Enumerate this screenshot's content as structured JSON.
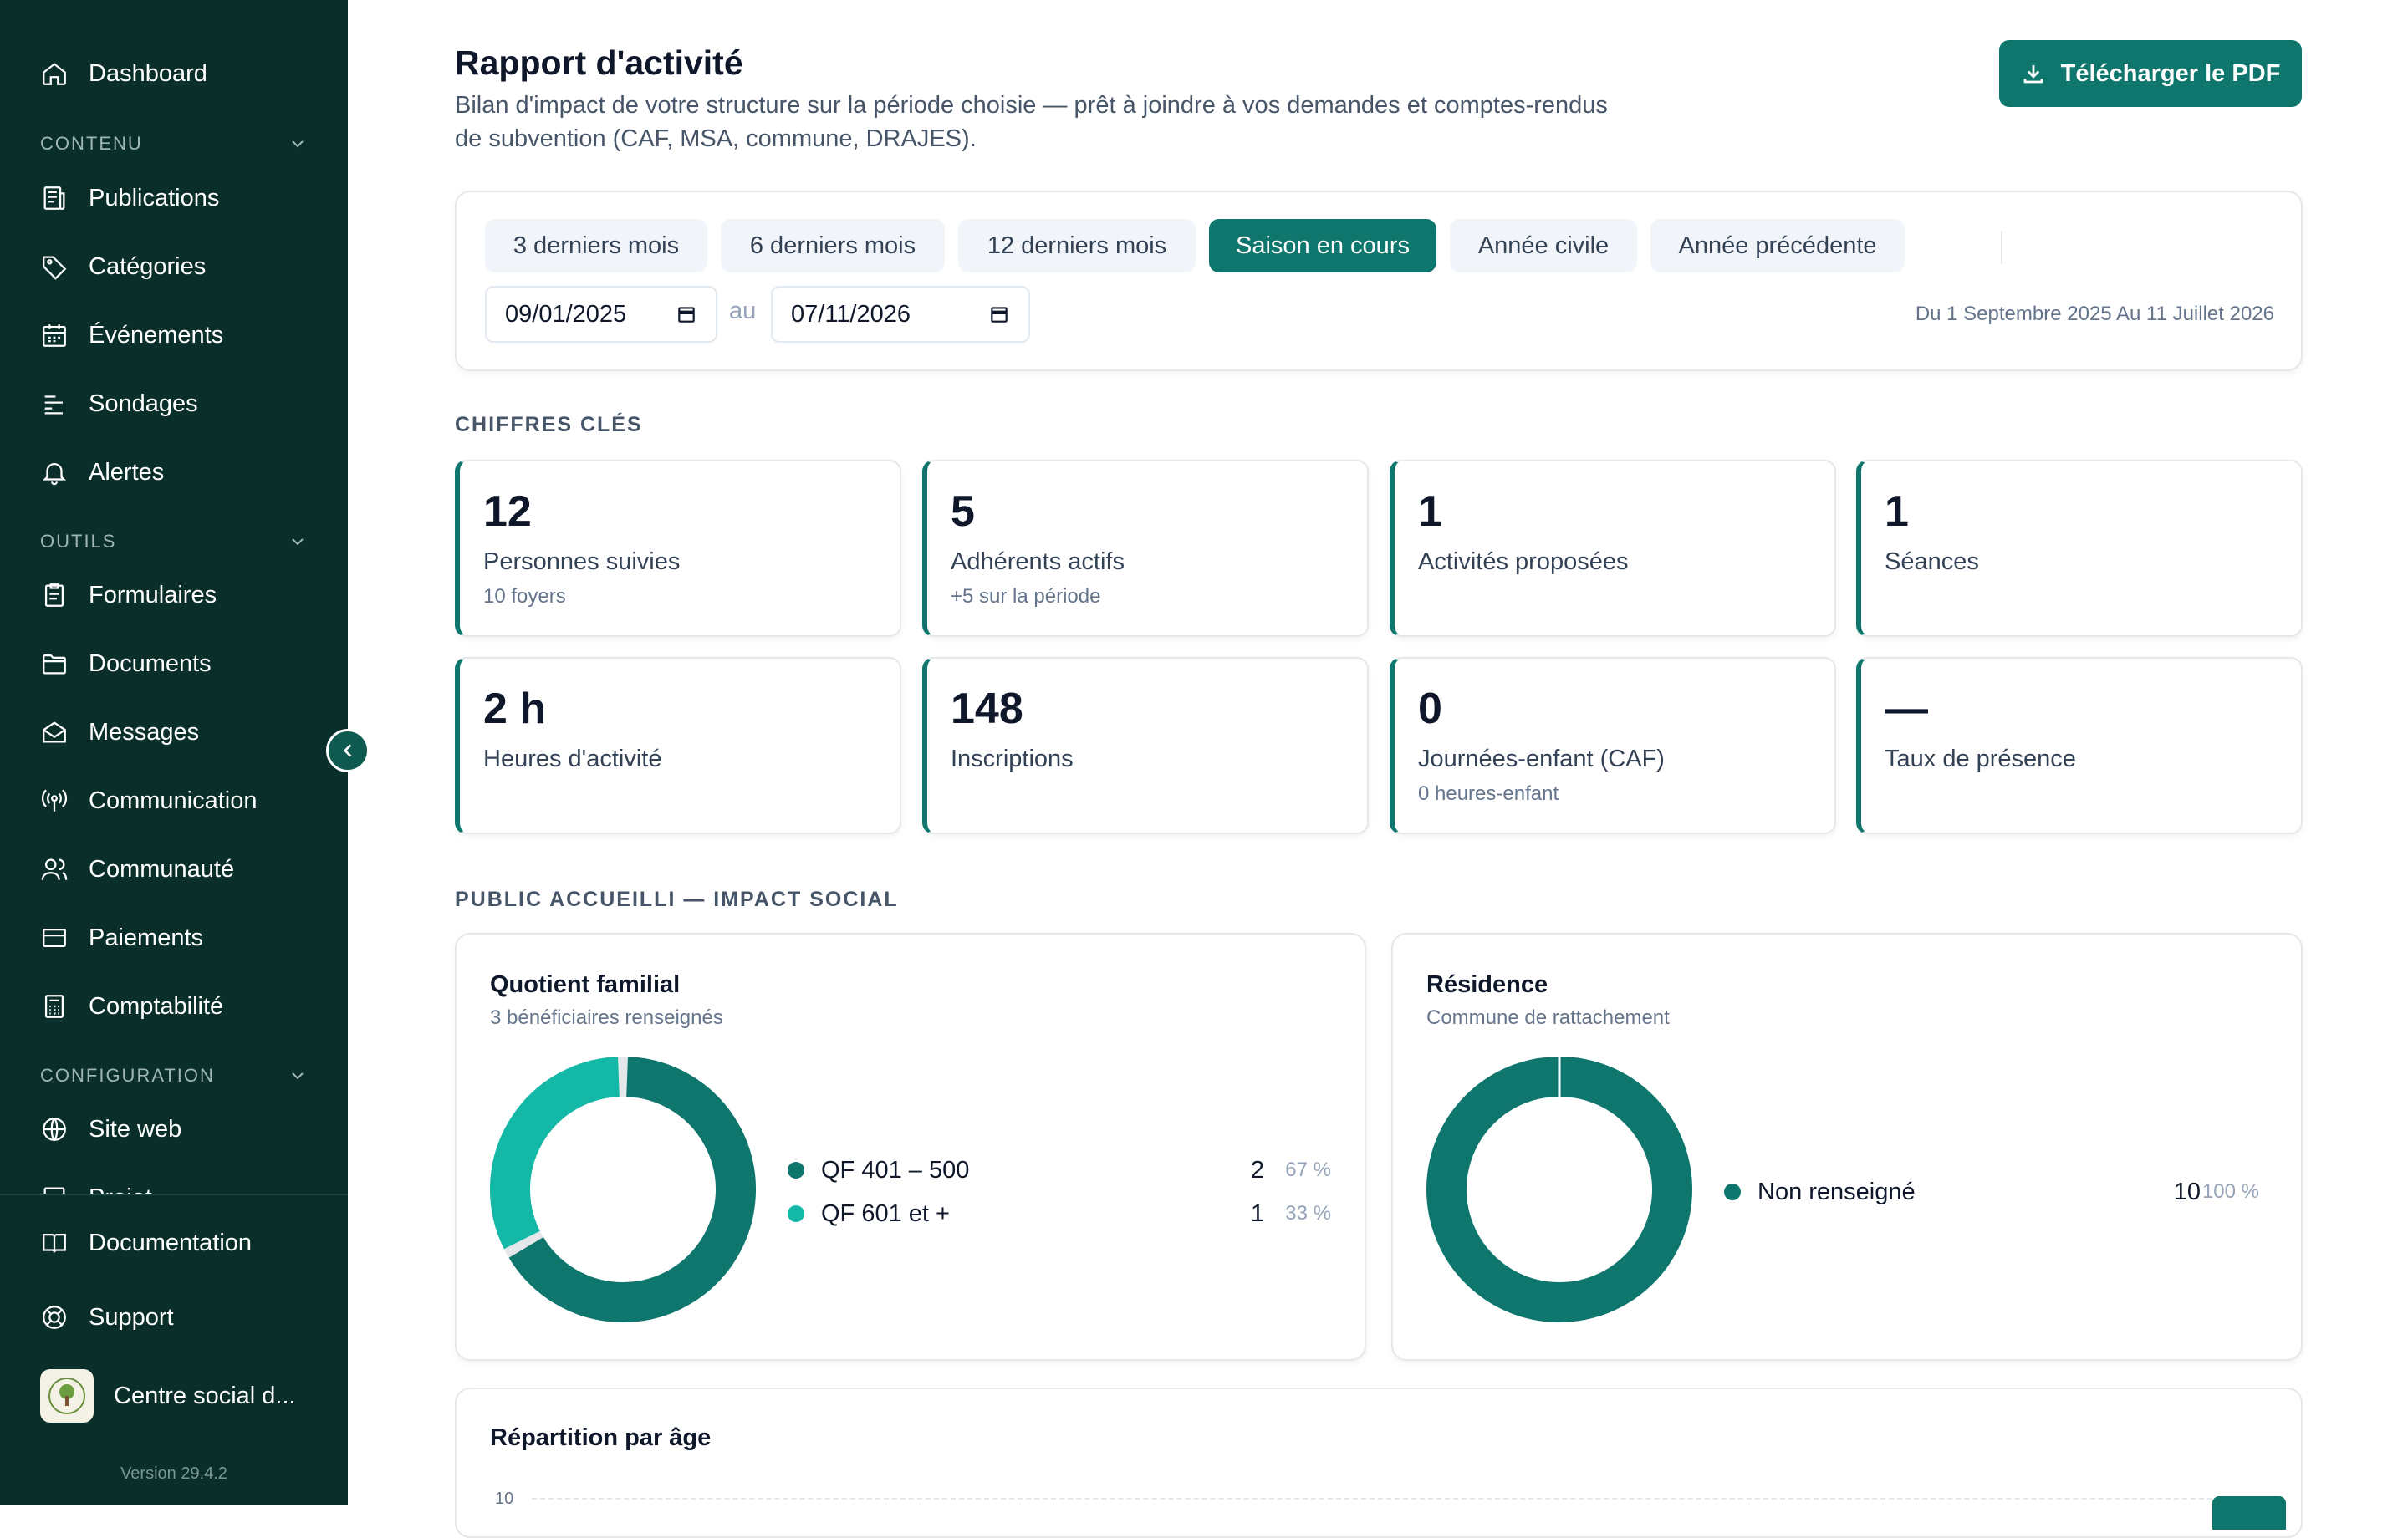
{
  "sidebar": {
    "dashboard": "Dashboard",
    "sections": {
      "contenu": "CONTENU",
      "outils": "OUTILS",
      "configuration": "CONFIGURATION"
    },
    "items": {
      "publications": "Publications",
      "categories": "Catégories",
      "evenements": "Événements",
      "sondages": "Sondages",
      "alertes": "Alertes",
      "formulaires": "Formulaires",
      "documents": "Documents",
      "messages": "Messages",
      "communication": "Communication",
      "communaute": "Communauté",
      "paiements": "Paiements",
      "comptabilite": "Comptabilité",
      "site_web": "Site web",
      "projet": "Projet"
    },
    "bottom": {
      "documentation": "Documentation",
      "support": "Support",
      "org_name": "Centre social d...",
      "version": "Version 29.4.2"
    }
  },
  "header": {
    "title": "Rapport d'activité",
    "subtitle": "Bilan d'impact de votre structure sur la période choisie — prêt à joindre à vos demandes et comptes-rendus de subvention (CAF, MSA, commune, DRAJES).",
    "pdf_button": "Télécharger le PDF"
  },
  "filters": {
    "presets": [
      "3 derniers mois",
      "6 derniers mois",
      "12 derniers mois",
      "Saison en cours",
      "Année civile",
      "Année précédente"
    ],
    "active_preset": "Saison en cours",
    "date_from": "09/01/2025",
    "date_sep": "au",
    "date_to": "07/11/2026",
    "summary": "Du 1 Septembre 2025 Au 11 Juillet 2026"
  },
  "kpis": {
    "section_label": "CHIFFRES CLÉS",
    "items": [
      {
        "value": "12",
        "label": "Personnes suivies",
        "sub": "10 foyers"
      },
      {
        "value": "5",
        "label": "Adhérents actifs",
        "sub": "+5 sur la période"
      },
      {
        "value": "1",
        "label": "Activités proposées",
        "sub": ""
      },
      {
        "value": "1",
        "label": "Séances",
        "sub": ""
      },
      {
        "value": "2 h",
        "label": "Heures d'activité",
        "sub": ""
      },
      {
        "value": "148",
        "label": "Inscriptions",
        "sub": ""
      },
      {
        "value": "0",
        "label": "Journées-enfant (CAF)",
        "sub": "0 heures-enfant"
      },
      {
        "value": "—",
        "label": "Taux de présence",
        "sub": ""
      }
    ]
  },
  "impact": {
    "section_label": "PUBLIC ACCUEILLI — IMPACT SOCIAL",
    "quotient": {
      "title": "Quotient familial",
      "subtitle": "3 bénéficiaires renseignés",
      "rows": [
        {
          "label": "QF 401 – 500",
          "count": "2",
          "pct": "67 %",
          "share": 0.67,
          "color": "#0f766e"
        },
        {
          "label": "QF 601 et +",
          "count": "1",
          "pct": "33 %",
          "share": 0.33,
          "color": "#14b8a6"
        }
      ]
    },
    "residence": {
      "title": "Résidence",
      "subtitle": "Commune de rattachement",
      "rows": [
        {
          "label": "Non renseigné",
          "count": "10",
          "pct": "100 %",
          "share": 1.0,
          "color": "#0f766e"
        }
      ]
    }
  },
  "age": {
    "title": "Répartition par âge",
    "y_tick": "10"
  },
  "colors": {
    "sidebar_bg": "#0a2e2a",
    "accent": "#0f766e",
    "accent_light": "#14b8a6"
  }
}
